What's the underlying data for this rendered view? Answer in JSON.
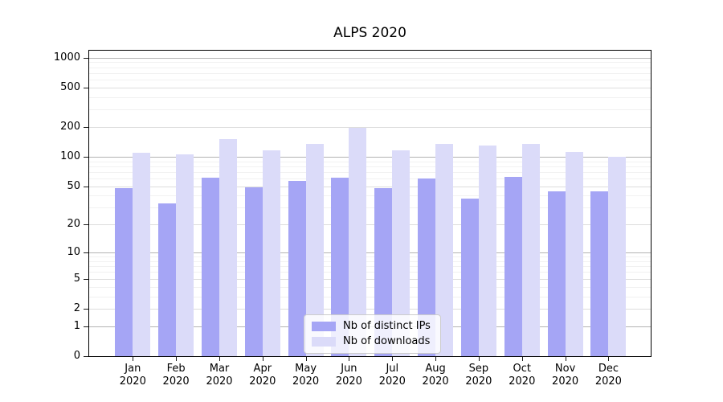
{
  "chart_data": {
    "type": "bar",
    "title": "ALPS 2020",
    "categories": [
      "Jan 2020",
      "Feb 2020",
      "Mar 2020",
      "Apr 2020",
      "May 2020",
      "Jun 2020",
      "Jul 2020",
      "Aug 2020",
      "Sep 2020",
      "Oct 2020",
      "Nov 2020",
      "Dec 2020"
    ],
    "months": [
      "Jan",
      "Feb",
      "Mar",
      "Apr",
      "May",
      "Jun",
      "Jul",
      "Aug",
      "Sep",
      "Oct",
      "Nov",
      "Dec"
    ],
    "year_label": "2020",
    "series": [
      {
        "name": "Nb of distinct IPs",
        "color": "#a5a5f5",
        "values": [
          48,
          33,
          61,
          49,
          57,
          61,
          48,
          60,
          37,
          62,
          44,
          44
        ]
      },
      {
        "name": "Nb of downloads",
        "color": "#dbdbf9",
        "values": [
          110,
          105,
          152,
          115,
          136,
          196,
          117,
          134,
          130,
          134,
          112,
          100
        ]
      }
    ],
    "xlabel": "",
    "ylabel": "",
    "yscale": "log1p",
    "yticks": [
      1000,
      500,
      200,
      100,
      50,
      20,
      10,
      5,
      2,
      1,
      0
    ],
    "ylim": [
      0,
      1220
    ],
    "grid": true,
    "legend_position": "lower center",
    "colors": {
      "major_grid": "#b3b3b3",
      "minor_grid_labeled": "#dddddd",
      "minor_grid_faint": "#f1f1f1",
      "axis": "#000000",
      "legend_border": "#cccccc"
    }
  }
}
